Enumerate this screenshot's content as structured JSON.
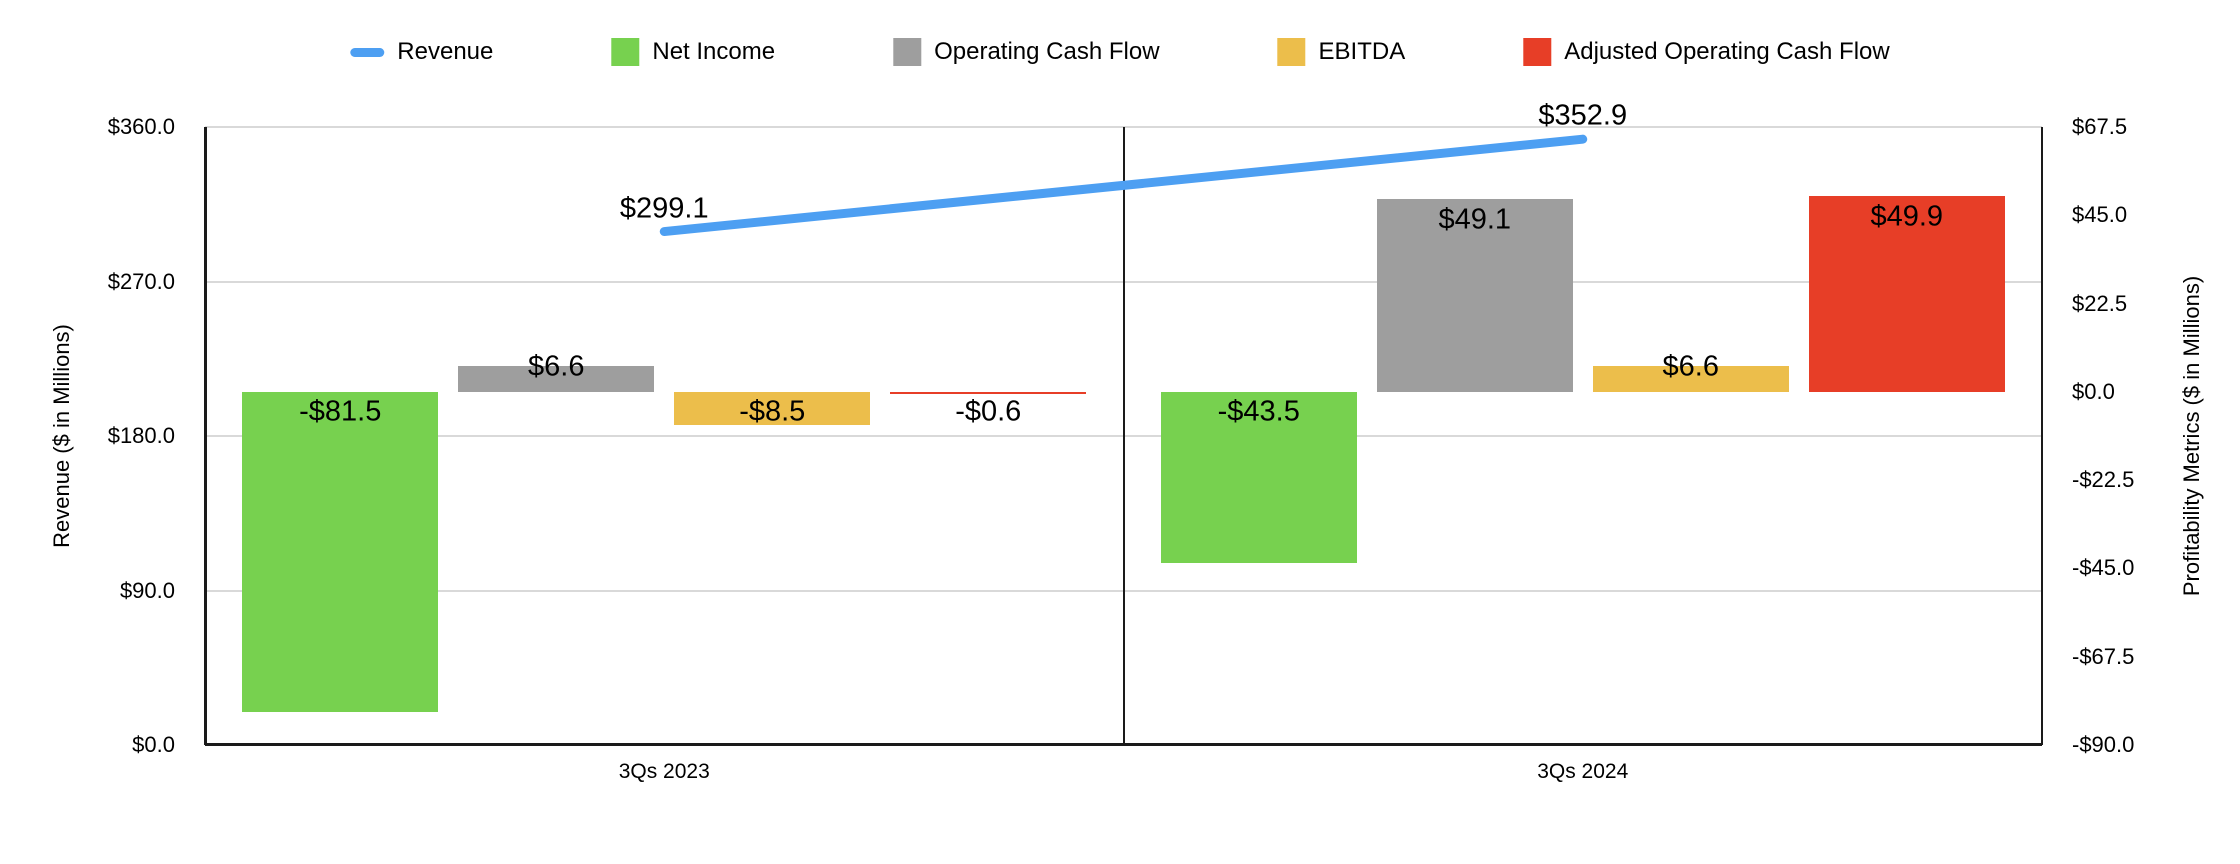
{
  "chart_data": {
    "type": "combo-line-bar",
    "categories": [
      "3Qs 2023",
      "3Qs 2024"
    ],
    "line_series": {
      "name": "Revenue",
      "axis": "left",
      "color": "#4d9ff2",
      "values": [
        299.1,
        352.9
      ],
      "labels": [
        "$299.1",
        "$352.9"
      ]
    },
    "bar_series": [
      {
        "name": "Net Income",
        "color": "#77d14f",
        "values": [
          -81.5,
          -43.5
        ],
        "labels": [
          "-$81.5",
          "-$43.5"
        ]
      },
      {
        "name": "Operating Cash Flow",
        "color": "#9e9e9e",
        "values": [
          6.6,
          49.1
        ],
        "labels": [
          "$6.6",
          "$49.1"
        ]
      },
      {
        "name": "EBITDA",
        "color": "#ecbe4b",
        "values": [
          -8.5,
          6.6
        ],
        "labels": [
          "-$8.5",
          "$6.6"
        ]
      },
      {
        "name": "Adjusted Operating Cash Flow",
        "color": "#e73e27",
        "values": [
          -0.6,
          49.9
        ],
        "labels": [
          "-$0.6",
          "$49.9"
        ]
      }
    ],
    "left_axis": {
      "title": "Revenue ($ in Millions)",
      "range": [
        0,
        360
      ],
      "ticks": [
        {
          "value": 0,
          "label": "$0.0"
        },
        {
          "value": 90,
          "label": "$90.0"
        },
        {
          "value": 180,
          "label": "$180.0"
        },
        {
          "value": 270,
          "label": "$270.0"
        },
        {
          "value": 360,
          "label": "$360.0"
        }
      ]
    },
    "right_axis": {
      "title": "Profitability Metrics ($ in Millions)",
      "range": [
        -90,
        67.5
      ],
      "ticks": [
        {
          "value": -90,
          "label": "-$90.0"
        },
        {
          "value": -67.5,
          "label": "-$67.5"
        },
        {
          "value": -45,
          "label": "-$45.0"
        },
        {
          "value": -22.5,
          "label": "-$22.5"
        },
        {
          "value": 0,
          "label": "$0.0"
        },
        {
          "value": 22.5,
          "label": "$22.5"
        },
        {
          "value": 45,
          "label": "$45.0"
        },
        {
          "value": 67.5,
          "label": "$67.5"
        }
      ]
    },
    "grid": true,
    "legend_position": "top",
    "background_color": "#ffffff",
    "gridline_color": "#d9d9d9",
    "axis_line_color": "#1a1a1a",
    "text_color": "#000000"
  }
}
